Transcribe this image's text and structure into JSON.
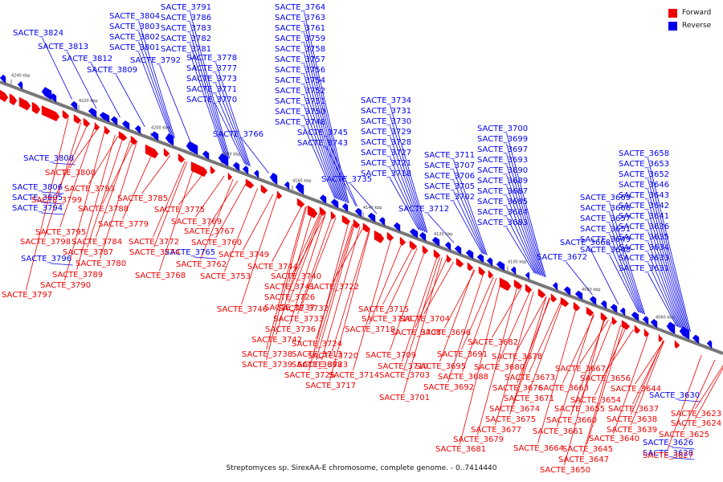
{
  "caption": "Streptomyces sp. SirexAA-E chromosome, complete genome. - 0..7414440",
  "legend": [
    {
      "label": "Forward",
      "color": "#ee0000"
    },
    {
      "label": "Reverse",
      "color": "#0000ee"
    }
  ],
  "colors": {
    "forward": "#ee0000",
    "reverse": "#0000ee",
    "axis": "#777777"
  },
  "ticks": [
    "4240 kbp",
    "4220 kbp",
    "4200 kbp",
    "4180 kbp",
    "4160 kbp",
    "4140 kbp",
    "4120 kbp",
    "4100 kbp",
    "4080 kbp",
    "4060 kbp"
  ],
  "reverse_labels": [
    "SACTE_3824",
    "SACTE_3813",
    "SACTE_3812",
    "SACTE_3809",
    "SACTE_3804",
    "SACTE_3803",
    "SACTE_3802",
    "SACTE_3801",
    "SACTE_3791",
    "SACTE_3786",
    "SACTE_3783",
    "SACTE_3782",
    "SACTE_3781",
    "SACTE_3792",
    "SACTE_3778",
    "SACTE_3777",
    "SACTE_3773",
    "SACTE_3771",
    "SACTE_3770",
    "SACTE_3766",
    "SACTE_3764",
    "SACTE_3763",
    "SACTE_3761",
    "SACTE_3759",
    "SACTE_3758",
    "SACTE_3757",
    "SACTE_3756",
    "SACTE_3754",
    "SACTE_3752",
    "SACTE_3751",
    "SACTE_3750",
    "SACTE_3748",
    "SACTE_3745",
    "SACTE_3743",
    "SACTE_3734",
    "SACTE_3731",
    "SACTE_3730",
    "SACTE_3729",
    "SACTE_3728",
    "SACTE_3727",
    "SACTE_3721",
    "SACTE_3718",
    "SACTE_3735",
    "SACTE_3711",
    "SACTE_3707",
    "SACTE_3706",
    "SACTE_3705",
    "SACTE_3702",
    "SACTE_3712",
    "SACTE_3700",
    "SACTE_3699",
    "SACTE_3697",
    "SACTE_3693",
    "SACTE_3690",
    "SACTE_3689",
    "SACTE_3687",
    "SACTE_3685",
    "SACTE_3684",
    "SACTE_3683",
    "SACTE_3672",
    "SACTE_3668",
    "SACTE_3669",
    "SACTE_3666",
    "SACTE_3657",
    "SACTE_3651",
    "SACTE_3649",
    "SACTE_3648",
    "SACTE_3658",
    "SACTE_3653",
    "SACTE_3652",
    "SACTE_3646",
    "SACTE_3643",
    "SACTE_3642",
    "SACTE_3641",
    "SACTE_3636",
    "SACTE_3635",
    "SACTE_3634",
    "SACTE_3633",
    "SACTE_3631",
    "SACTE_3808",
    "SACTE_3806",
    "SACTE_3805",
    "SACTE_3794",
    "SACTE_3796",
    "SACTE_3765",
    "SACTE_3630",
    "SACTE_3626",
    "SACTE_3628"
  ],
  "forward_labels": [
    "SACTE_3800",
    "SACTE_3793",
    "SACTE_3799",
    "SACTE_3788",
    "SACTE_3785",
    "SACTE_3795",
    "SACTE_3779",
    "SACTE_3775",
    "SACTE_3798",
    "SACTE_3784",
    "SACTE_3769",
    "SACTE_3767",
    "SACTE_3787",
    "SACTE_3772",
    "SACTE_3760",
    "SACTE_3780",
    "SACTE_3774",
    "SACTE_3789",
    "SACTE_3762",
    "SACTE_3749",
    "SACTE_3790",
    "SACTE_3768",
    "SACTE_3744",
    "SACTE_3797",
    "SACTE_3753",
    "SACTE_3740",
    "SACTE_3741",
    "SACTE_3726",
    "SACTE_3737",
    "SACTE_3722",
    "SACTE_3746",
    "SACTE_3732",
    "SACTE_3715",
    "SACTE_3733",
    "SACTE_3716",
    "SACTE_3704",
    "SACTE_3736",
    "SACTE_3719",
    "SACTE_3708",
    "SACTE_3696",
    "SACTE_3742",
    "SACTE_3724",
    "SACTE_3713",
    "SACTE_3698",
    "SACTE_3738",
    "SACTE_3720",
    "SACTE_3709",
    "SACTE_3691",
    "SACTE_3682",
    "SACTE_3739",
    "SACTE_3723",
    "SACTE_3710",
    "SACTE_3695",
    "SACTE_3678",
    "SACTE_3680",
    "SACTE_3725",
    "SACTE_3714",
    "SACTE_3703",
    "SACTE_3688",
    "SACTE_3673",
    "SACTE_3667",
    "SACTE_3717",
    "SACTE_3692",
    "SACTE_3676",
    "SACTE_3663",
    "SACTE_3656",
    "SACTE_3701",
    "SACTE_3671",
    "SACTE_3654",
    "SACTE_3644",
    "SACTE_3674",
    "SACTE_3655",
    "SACTE_3637",
    "SACTE_3675",
    "SACTE_3660",
    "SACTE_3638",
    "SACTE_3623",
    "SACTE_3677",
    "SACTE_3661",
    "SACTE_3639",
    "SACTE_3624",
    "SACTE_3679",
    "SACTE_3640",
    "SACTE_3625",
    "SACTE_3681",
    "SACTE_3664",
    "SACTE_3645",
    "SACTE_3647",
    "SACTE_3627",
    "SACTE_3650"
  ]
}
